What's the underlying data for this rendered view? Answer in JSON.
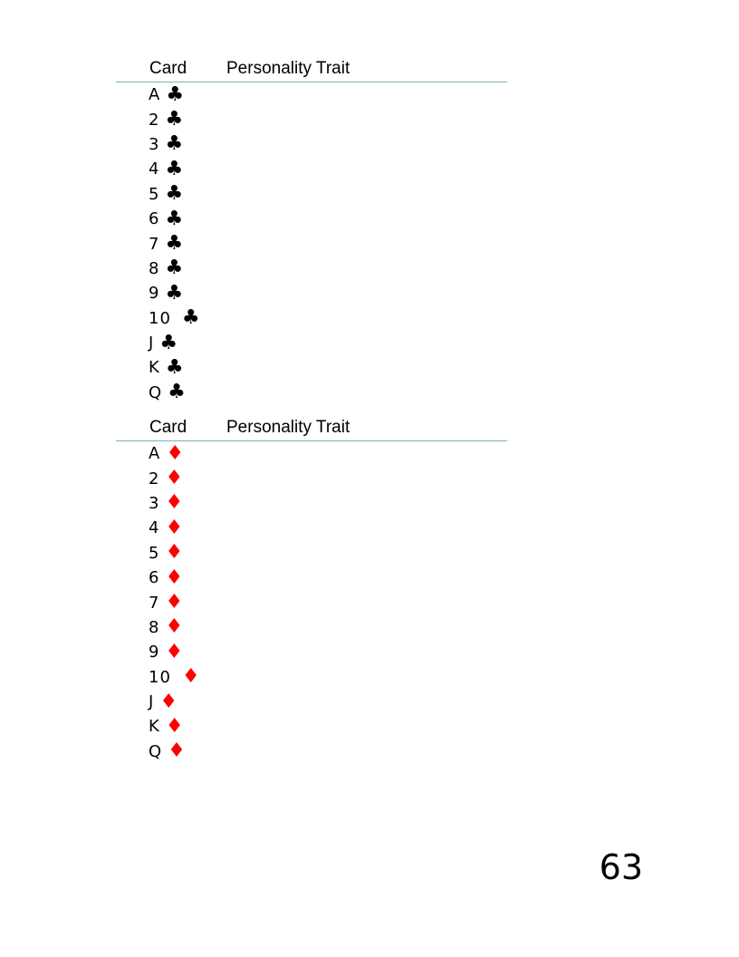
{
  "colors": {
    "rule": "#7fb0b4",
    "clubs": "#000000",
    "diamonds": "#ff0000"
  },
  "tables": [
    {
      "header": {
        "card": "Card",
        "trait": "Personality Trait"
      },
      "suit_symbol": "♣",
      "suit": "clubs",
      "rows": [
        "A",
        "2",
        "3",
        "4",
        "5",
        "6",
        "7",
        "8",
        "9",
        "10",
        "J",
        "K",
        "Q"
      ]
    },
    {
      "header": {
        "card": "Card",
        "trait": "Personality Trait"
      },
      "suit_symbol": "♦",
      "suit": "diamonds",
      "rows": [
        "A",
        "2",
        "3",
        "4",
        "5",
        "6",
        "7",
        "8",
        "9",
        "10",
        "J",
        "K",
        "Q"
      ]
    }
  ],
  "page_number": "63"
}
